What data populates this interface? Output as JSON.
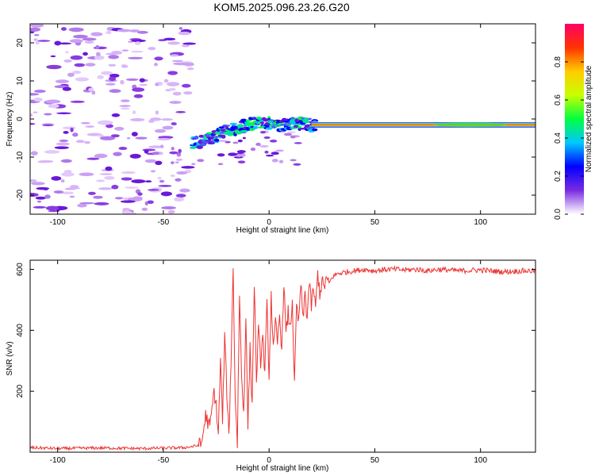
{
  "title": "KOM5.2025.096.23.26.G20",
  "chart_data": [
    {
      "type": "heatmap",
      "xlabel": "Height of straight line (km)",
      "ylabel": "Frequency (Hz)",
      "xlim": [
        -113,
        126
      ],
      "ylim": [
        -25,
        25
      ],
      "xticks": [
        -100,
        -50,
        0,
        50,
        100
      ],
      "yticks": [
        -20,
        -10,
        0,
        10,
        20
      ],
      "colorbar": {
        "label": "Normalized spectral amplitude",
        "range": [
          0,
          1
        ],
        "ticks": [
          0.0,
          0.2,
          0.4,
          0.6,
          0.8
        ],
        "colors": [
          "#ffffff",
          "#7a2be2",
          "#0000ff",
          "#00c8ff",
          "#00ff40",
          "#c8ff00",
          "#ffcc00",
          "#ff3300",
          "#ff0066"
        ]
      },
      "signal_track": {
        "x": [
          -36,
          -30,
          -25,
          -20,
          -15,
          -10,
          -5,
          0,
          5,
          10,
          15,
          20,
          40,
          60,
          80,
          100,
          126
        ],
        "freq": [
          -6.5,
          -5.5,
          -4.5,
          -3,
          -2.5,
          -1.5,
          -1,
          -1.2,
          -1.5,
          -1.2,
          -1.3,
          -1.5,
          -1.5,
          -1.5,
          -1.5,
          -1.5,
          -1.5
        ]
      },
      "noise_region_x": [
        -113,
        -37
      ]
    },
    {
      "type": "line",
      "xlabel": "Height of straight line (km)",
      "ylabel": "SNR (v/v)",
      "xlim": [
        -113,
        126
      ],
      "ylim": [
        0,
        630
      ],
      "xticks": [
        -100,
        -50,
        0,
        50,
        100
      ],
      "yticks": [
        200,
        400,
        600
      ],
      "color": "#ee3333",
      "series": [
        {
          "x": [
            -113,
            -100,
            -80,
            -60,
            -40,
            -35,
            -32,
            -30,
            -28,
            -26,
            -25,
            -24,
            -23,
            -22,
            -21,
            -20,
            -19,
            -18,
            -17,
            -16,
            -15,
            -14,
            -13,
            -12,
            -11,
            -10,
            -9,
            -8,
            -7,
            -6,
            -5,
            -4,
            -3,
            -2,
            -1,
            0,
            1,
            2,
            3,
            4,
            5,
            6,
            7,
            8,
            9,
            10,
            11,
            12,
            13,
            14,
            15,
            16,
            17,
            18,
            19,
            20,
            21,
            22,
            23,
            24,
            25,
            26,
            27,
            28,
            30,
            32,
            35,
            40,
            45,
            50,
            55,
            60,
            65,
            70,
            75,
            80,
            90,
            100,
            110,
            120,
            126
          ],
          "y": [
            15,
            12,
            14,
            12,
            15,
            20,
            25,
            120,
            80,
            200,
            150,
            60,
            300,
            100,
            380,
            200,
            50,
            300,
            600,
            180,
            30,
            520,
            250,
            130,
            450,
            90,
            340,
            150,
            560,
            240,
            400,
            300,
            380,
            260,
            480,
            250,
            520,
            330,
            420,
            360,
            450,
            340,
            560,
            380,
            460,
            400,
            500,
            210,
            480,
            420,
            560,
            430,
            520,
            440,
            560,
            480,
            540,
            470,
            590,
            520,
            560,
            540,
            570,
            550,
            575,
            585,
            590,
            595,
            600,
            595,
            600,
            600,
            598,
            600,
            595,
            600,
            595,
            598,
            592,
            595,
            595
          ]
        }
      ]
    }
  ]
}
